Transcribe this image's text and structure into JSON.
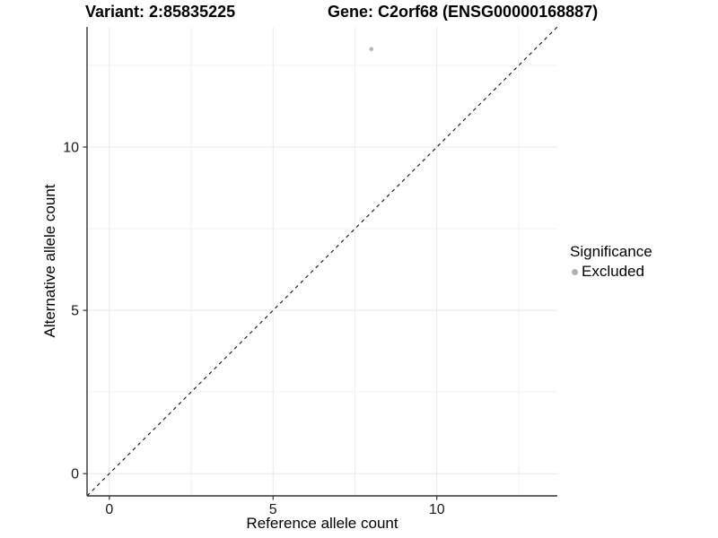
{
  "header": {
    "variant_title": "Variant: 2:85835225",
    "gene_title": "Gene: C2orf68 (ENSG00000168887)"
  },
  "chart_data": {
    "type": "scatter",
    "title": "Variant: 2:85835225    Gene: C2orf68 (ENSG00000168887)",
    "xlabel": "Reference allele count",
    "ylabel": "Alternative allele count",
    "xlim": [
      -0.68,
      13.68
    ],
    "ylim": [
      -0.68,
      13.68
    ],
    "x_major_ticks": [
      0,
      5,
      10
    ],
    "y_major_ticks": [
      0,
      5,
      10
    ],
    "x_minor_ticks": [
      2.5,
      7.5,
      12.5
    ],
    "y_minor_ticks": [
      2.5,
      7.5,
      12.5
    ],
    "grid": "major-and-minor",
    "series": [
      {
        "name": "Excluded",
        "color": "#b5b5b5",
        "points": [
          {
            "x": 8,
            "y": 13
          }
        ]
      }
    ],
    "reference_line": {
      "type": "identity",
      "slope": 1,
      "intercept": 0,
      "style": "dashed",
      "color": "#111111"
    },
    "legend": {
      "title": "Significance",
      "position": "right",
      "entries": [
        {
          "label": "Excluded",
          "color": "#b5b5b5"
        }
      ]
    }
  },
  "colors": {
    "background": "#ffffff",
    "axis_line": "#333333",
    "tick_label": "#1a1a1a",
    "grid_major": "#e8e8e8",
    "grid_minor": "#f0f0f0",
    "point": "#b5b5b5",
    "legend_key": "#b3b3b3"
  }
}
